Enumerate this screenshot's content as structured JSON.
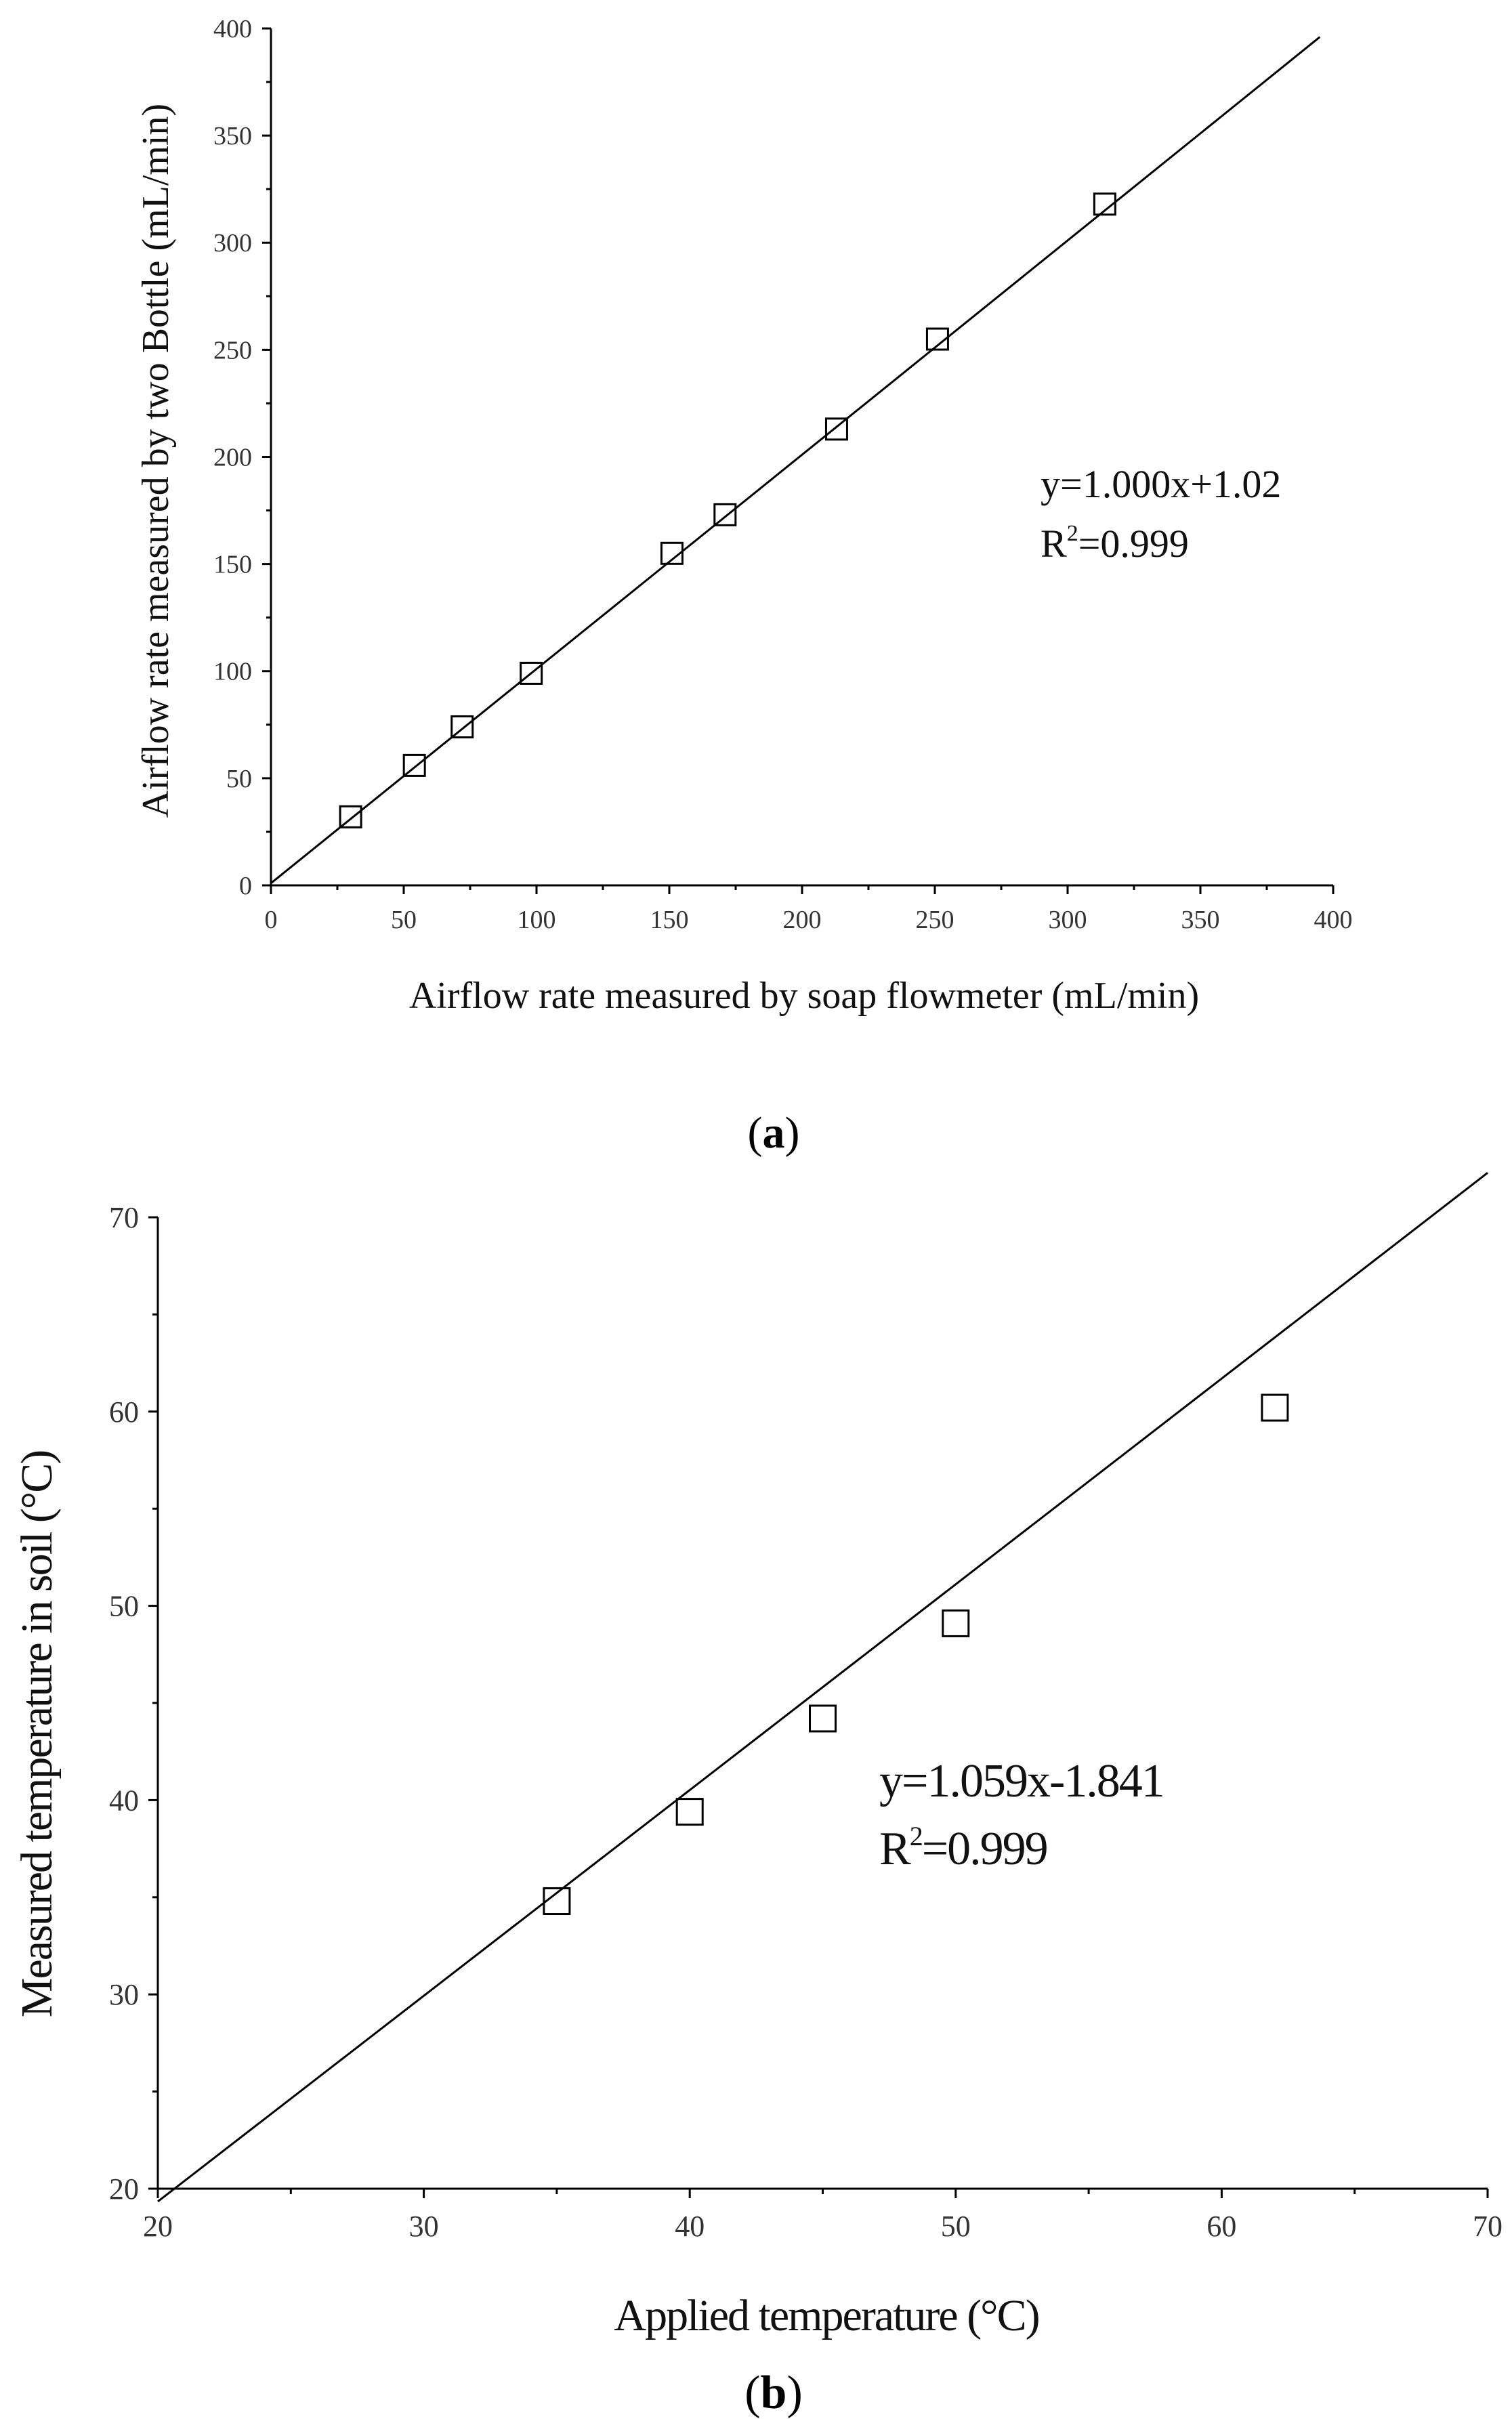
{
  "chart_data": [
    {
      "type": "scatter",
      "caption": {
        "open": "(",
        "letter": "a",
        "close": ")"
      },
      "xlabel": "Airflow rate measured by soap flowmeter (mL/min)",
      "ylabel": "Airflow rate measured by two Bottle (mL/min)",
      "xlim": [
        0,
        400
      ],
      "ylim": [
        0,
        400
      ],
      "xticks": [
        0,
        50,
        100,
        150,
        200,
        250,
        300,
        350,
        400
      ],
      "yticks": [
        0,
        50,
        100,
        150,
        200,
        250,
        300,
        350,
        400
      ],
      "grid": false,
      "points": [
        {
          "x": 30,
          "y": 32
        },
        {
          "x": 54,
          "y": 56
        },
        {
          "x": 72,
          "y": 74
        },
        {
          "x": 98,
          "y": 99
        },
        {
          "x": 151,
          "y": 155
        },
        {
          "x": 171,
          "y": 173
        },
        {
          "x": 213,
          "y": 213
        },
        {
          "x": 251,
          "y": 255
        },
        {
          "x": 314,
          "y": 318
        }
      ],
      "fit": {
        "slope": 1.0,
        "intercept": 1.02,
        "x_range": [
          0,
          395
        ]
      },
      "equation": "y=1.000x+1.02",
      "r2_prefix": "R",
      "r2_sup": "2",
      "r2_value": "=0.999"
    },
    {
      "type": "scatter",
      "caption": {
        "open": "(",
        "letter": "b",
        "close": ")"
      },
      "xlabel": "Applied temperature (°C)",
      "ylabel": "Measured temperature in soil (°C)",
      "xlim": [
        20,
        70
      ],
      "ylim": [
        20,
        70
      ],
      "xticks": [
        20,
        30,
        40,
        50,
        60,
        70
      ],
      "yticks": [
        20,
        30,
        40,
        50,
        60,
        70
      ],
      "grid": false,
      "points": [
        {
          "x": 35,
          "y": 34.8
        },
        {
          "x": 40,
          "y": 39.4
        },
        {
          "x": 45,
          "y": 44.2
        },
        {
          "x": 50,
          "y": 49.1
        },
        {
          "x": 62,
          "y": 60.2
        }
      ],
      "fit": {
        "slope": 1.059,
        "intercept": -1.841,
        "x_range": [
          20,
          70
        ]
      },
      "equation": "y=1.059x-1.841",
      "r2_prefix": "R",
      "r2_sup": "2",
      "r2_value": "=0.999"
    }
  ],
  "colors": {
    "axis": "#000000",
    "marker": "#000000",
    "fit_line": "#000000"
  }
}
